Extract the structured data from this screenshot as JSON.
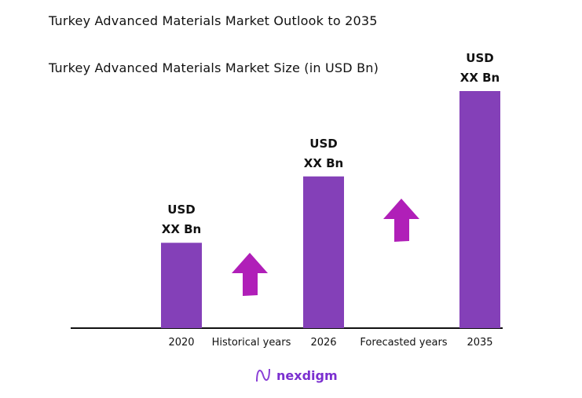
{
  "title": "Turkey Advanced Materials Market Outlook to 2035",
  "chart_data": {
    "type": "bar",
    "title": "Turkey Advanced Materials Market Size (in USD Bn)",
    "categories": [
      "2020",
      "2026",
      "2035"
    ],
    "values": [
      36,
      64,
      100
    ],
    "data_labels": [
      [
        "USD",
        "XX Bn"
      ],
      [
        "USD",
        "XX Bn"
      ],
      [
        "USD",
        "XX Bn"
      ]
    ],
    "annotations": [
      "Historical years",
      "Forecasted years"
    ],
    "bar_color": "#8440b8",
    "arrow_color": "#b01fb8",
    "grid": false
  },
  "brand": {
    "name": "nexdigm",
    "color": "#7b2fd0"
  }
}
